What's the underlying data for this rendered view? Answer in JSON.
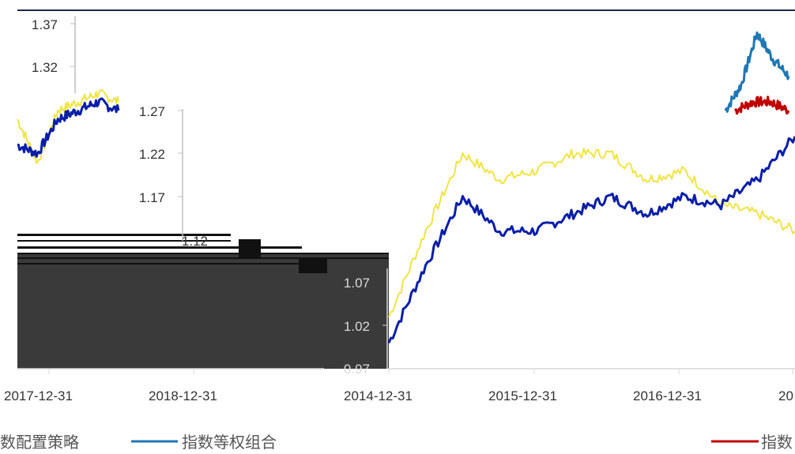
{
  "chart_data": [
    {
      "type": "line",
      "title": "",
      "xlabel": "",
      "ylabel": "",
      "ylim": [
        0.97,
        1.37
      ],
      "y_ticks": [
        "1.37",
        "1.32",
        "1.27",
        "1.22",
        "1.17",
        "1.12",
        "1.07",
        "1.02",
        "0.97"
      ],
      "x_ticks": [
        "2014-12-31",
        "2015-12-31",
        "2016-12-31"
      ],
      "grid": false,
      "legend": "bottom",
      "series": [
        {
          "name": "指数等权组合",
          "color": "#0b1ea8",
          "x": [
            "2014-12-31",
            "2015-03-31",
            "2015-06-30",
            "2015-09-30",
            "2015-12-31",
            "2016-03-31",
            "2016-06-30",
            "2016-09-30",
            "2016-12-31",
            "2017-03-31",
            "2017-06-30",
            "2017-09-30"
          ],
          "values": [
            1.0,
            1.09,
            1.17,
            1.13,
            1.13,
            1.15,
            1.17,
            1.15,
            1.17,
            1.16,
            1.19,
            1.24
          ]
        },
        {
          "name": "",
          "color": "#f0e442",
          "x": [
            "2014-12-31",
            "2015-03-31",
            "2015-06-30",
            "2015-09-30",
            "2015-12-31",
            "2016-03-31",
            "2016-06-30",
            "2016-09-30",
            "2016-12-31",
            "2017-03-31",
            "2017-06-30",
            "2017-09-30"
          ],
          "values": [
            1.03,
            1.13,
            1.22,
            1.19,
            1.2,
            1.22,
            1.22,
            1.19,
            1.2,
            1.16,
            1.15,
            1.13
          ]
        }
      ]
    },
    {
      "type": "line",
      "title": "",
      "xlabel": "",
      "ylabel": "",
      "y_ticks": [
        "1.37",
        "1.32",
        "1.27",
        "1.22",
        "1.17",
        "1.12"
      ],
      "x_ticks": [
        "2017-12-31",
        "2018-12-31"
      ],
      "legend": "bottom",
      "series": [
        {
          "name": "指数配置策略",
          "color": "#f0e442",
          "values": [
            1.26,
            1.21,
            1.27,
            1.28,
            1.29,
            1.28
          ]
        },
        {
          "name": "",
          "color": "#0b1ea8",
          "values": [
            1.23,
            1.22,
            1.26,
            1.27,
            1.28,
            1.27
          ]
        }
      ]
    },
    {
      "type": "line",
      "title": "",
      "xlabel": "",
      "ylabel": "",
      "x_ticks": [
        "20"
      ],
      "legend": "bottom",
      "series": [
        {
          "name": "",
          "color": "#1f77b4",
          "values": [
            1.27,
            1.3,
            1.36,
            1.33,
            1.31
          ]
        },
        {
          "name": "指数",
          "color": "#c00000",
          "values": [
            1.27,
            1.28,
            1.28,
            1.27
          ]
        }
      ]
    }
  ],
  "legend": {
    "strategy_fragment": "数配置策略",
    "equal_weight": "指数等权组合",
    "right_fragment": "指数"
  }
}
